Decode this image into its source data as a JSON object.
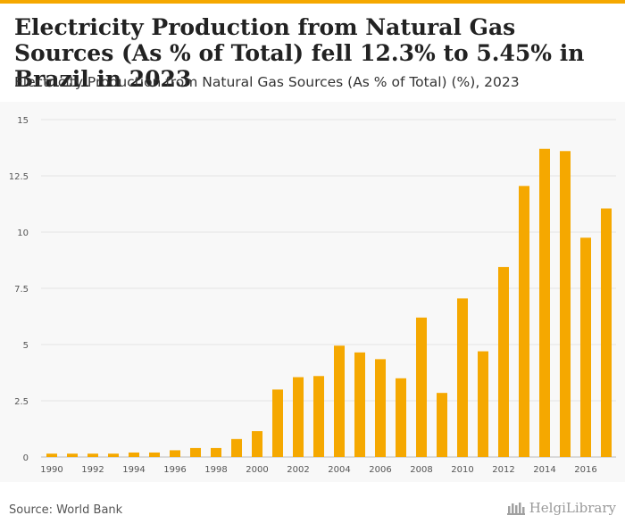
{
  "title": "Electricity Production from Natural Gas Sources (As % of Total) fell 12.3% to 5.45% in Brazil in 2023",
  "subtitle": "Electricity Production from Natural Gas Sources (As % of Total) (%), 2023",
  "source": "Source: World Bank",
  "brand": "HelgiLibrary",
  "colors": {
    "bar": "#f5a800",
    "accent": "#f5a800"
  },
  "chart_data": {
    "type": "bar",
    "categories": [
      "1990",
      "1991",
      "1992",
      "1993",
      "1994",
      "1995",
      "1996",
      "1997",
      "1998",
      "1999",
      "2000",
      "2001",
      "2002",
      "2003",
      "2004",
      "2005",
      "2006",
      "2007",
      "2008",
      "2009",
      "2010",
      "2011",
      "2012",
      "2013",
      "2014",
      "2015",
      "2016",
      "2017"
    ],
    "x_tick_labels": [
      "1990",
      "1992",
      "1994",
      "1996",
      "1998",
      "2000",
      "2002",
      "2004",
      "2006",
      "2008",
      "2010",
      "2012",
      "2014",
      "2016"
    ],
    "values": [
      0.15,
      0.15,
      0.15,
      0.15,
      0.2,
      0.2,
      0.3,
      0.4,
      0.4,
      0.8,
      1.15,
      3.0,
      3.55,
      3.6,
      4.95,
      4.65,
      4.35,
      3.5,
      6.2,
      2.85,
      7.05,
      4.7,
      8.45,
      12.05,
      13.7,
      13.6,
      9.75,
      11.05
    ],
    "y_ticks": [
      "0",
      "2.5",
      "5",
      "7.5",
      "10",
      "12.5",
      "15"
    ],
    "ylim": [
      0,
      15
    ],
    "grid": true
  }
}
